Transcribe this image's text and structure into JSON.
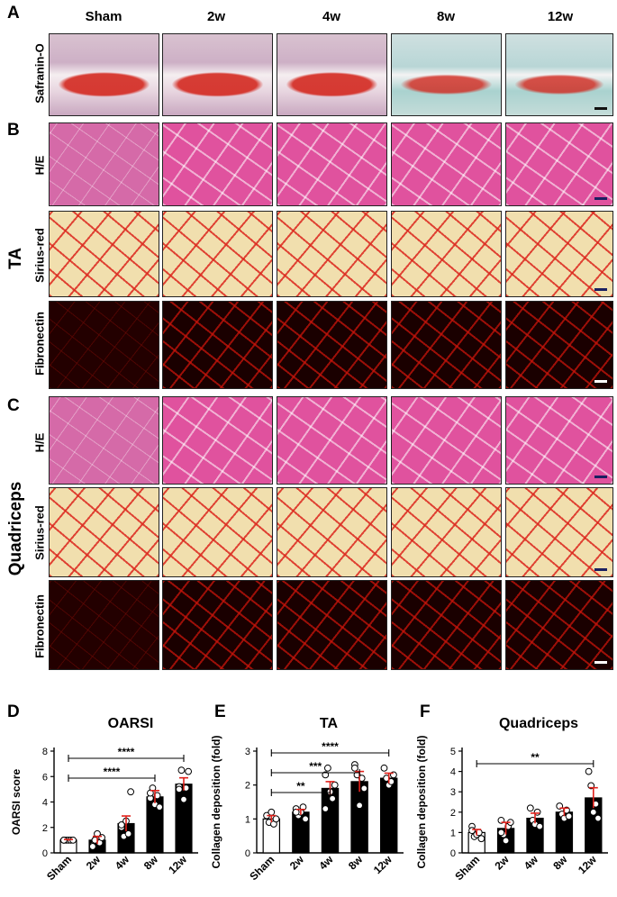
{
  "panels": {
    "A": "A",
    "B": "B",
    "C": "C",
    "D": "D",
    "E": "E",
    "F": "F"
  },
  "columns": [
    "Sham",
    "2w",
    "4w",
    "8w",
    "12w"
  ],
  "row_labels": {
    "safranin": "Safranin-O",
    "he": "H/E",
    "sirius": "Sirius-red",
    "fibronectin": "Fibronectin"
  },
  "side_labels": {
    "ta": "TA",
    "quadriceps": "Quadriceps"
  },
  "chart_data": [
    {
      "type": "bar",
      "title": "OARSI",
      "ylabel": "OARSI score",
      "categories": [
        "Sham",
        "2w",
        "4w",
        "8w",
        "12w"
      ],
      "values": [
        1.0,
        1.0,
        2.3,
        4.4,
        5.4
      ],
      "errors": [
        0.05,
        0.3,
        0.6,
        0.5,
        0.5
      ],
      "points": [
        [
          1,
          1,
          1,
          1,
          1,
          1
        ],
        [
          0.6,
          1,
          1.5,
          0.8,
          1.2,
          0.5,
          1.0
        ],
        [
          2,
          1.3,
          2.5,
          1.5,
          4.8,
          2.2
        ],
        [
          4.3,
          5.1,
          3.8,
          4.5,
          3.6,
          4.7
        ],
        [
          5.2,
          6.5,
          4.2,
          5.1,
          6.4,
          5.0
        ]
      ],
      "ylim": [
        0,
        8
      ],
      "yticks": [
        0,
        2,
        4,
        6,
        8
      ],
      "significance": [
        {
          "from": "Sham",
          "to": "8w",
          "label": "****"
        },
        {
          "from": "Sham",
          "to": "12w",
          "label": "****"
        }
      ],
      "bar_colors": [
        "#ffffff",
        "#000000",
        "#000000",
        "#000000",
        "#000000"
      ],
      "error_color": "#e0201a"
    },
    {
      "type": "bar",
      "title": "TA",
      "ylabel": "Collagen deposition (fold)",
      "categories": [
        "Sham",
        "2w",
        "4w",
        "8w",
        "12w"
      ],
      "values": [
        1.0,
        1.2,
        1.9,
        2.1,
        2.2
      ],
      "errors": [
        0.1,
        0.08,
        0.2,
        0.3,
        0.15
      ],
      "points": [
        [
          1.1,
          0.9,
          1.2,
          0.85,
          1.0
        ],
        [
          1.3,
          1.1,
          1.2,
          1.35,
          1.0,
          1.2
        ],
        [
          2.3,
          2.5,
          1.8,
          1.6,
          2.0,
          1.3
        ],
        [
          2.6,
          2.3,
          1.4,
          2.2,
          1.9,
          2.5
        ],
        [
          2.5,
          2.2,
          2.0,
          2.1,
          2.3
        ]
      ],
      "ylim": [
        0,
        3
      ],
      "yticks": [
        0,
        1,
        2,
        3
      ],
      "significance": [
        {
          "from": "Sham",
          "to": "4w",
          "label": "**"
        },
        {
          "from": "Sham",
          "to": "8w",
          "label": "***"
        },
        {
          "from": "Sham",
          "to": "12w",
          "label": "****"
        }
      ],
      "bar_colors": [
        "#ffffff",
        "#000000",
        "#000000",
        "#000000",
        "#000000"
      ],
      "error_color": "#e0201a"
    },
    {
      "type": "bar",
      "title": "Quadriceps",
      "ylabel": "Collagen deposition (fold)",
      "categories": [
        "Sham",
        "2w",
        "4w",
        "8w",
        "12w"
      ],
      "values": [
        1.0,
        1.2,
        1.7,
        2.0,
        2.7
      ],
      "errors": [
        0.15,
        0.3,
        0.25,
        0.2,
        0.5
      ],
      "points": [
        [
          1.3,
          0.8,
          0.9,
          1.0,
          0.7,
          1.1
        ],
        [
          1.6,
          0.9,
          0.6,
          1.3,
          1.5,
          1.0
        ],
        [
          2.2,
          1.6,
          1.4,
          2.0,
          1.3
        ],
        [
          2.3,
          1.9,
          1.7,
          2.1,
          1.8
        ],
        [
          4.0,
          3.3,
          2.0,
          2.4,
          1.7
        ]
      ],
      "ylim": [
        0,
        5
      ],
      "yticks": [
        0,
        1,
        2,
        3,
        4,
        5
      ],
      "significance": [
        {
          "from": "Sham",
          "to": "12w",
          "label": "**"
        }
      ],
      "bar_colors": [
        "#ffffff",
        "#000000",
        "#000000",
        "#000000",
        "#000000"
      ],
      "error_color": "#e0201a"
    }
  ]
}
